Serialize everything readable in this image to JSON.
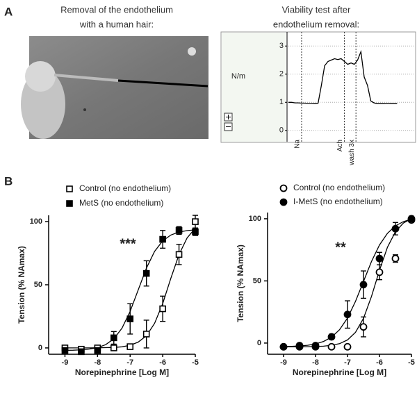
{
  "panel_labels": {
    "a": "A",
    "b": "B"
  },
  "photo": {
    "caption": [
      "Removal of the endothelium",
      "with a human hair:"
    ]
  },
  "chart_data": [
    {
      "type": "trace",
      "title": [
        "Viability test after",
        "endothelium removal:"
      ],
      "ylabel": "N/m",
      "ylim": [
        -0.4,
        3.5
      ],
      "yticks": [
        0,
        1,
        2,
        3
      ],
      "grid": true,
      "color": "#000",
      "values": [
        1.0,
        1.0,
        0.98,
        0.98,
        0.97,
        0.97,
        0.96,
        0.96,
        0.95,
        0.97,
        1.6,
        2.3,
        2.45,
        2.5,
        2.55,
        2.52,
        2.55,
        2.45,
        2.35,
        2.4,
        2.35,
        2.5,
        2.8,
        1.9,
        1.6,
        1.05,
        0.98,
        0.95,
        0.95,
        0.95,
        0.96,
        0.95,
        0.95,
        0.95
      ],
      "events": [
        {
          "text": "Na",
          "at": 4
        },
        {
          "text": "Ach",
          "at": 17
        },
        {
          "text": "wash 3x",
          "at": 20.5
        }
      ]
    },
    {
      "type": "dose-response",
      "xlabel": "Norepinephrine [Log M]",
      "ylabel": "Tension (% NAmax)",
      "annotation": "***",
      "xlim": [
        -9.5,
        -5
      ],
      "xticks": [
        -9,
        -8,
        -7,
        -6,
        -5
      ],
      "ylim": [
        -5,
        105
      ],
      "yticks": [
        0,
        50,
        100
      ],
      "x": [
        -9,
        -8.5,
        -8,
        -7.5,
        -7,
        -6.5,
        -6,
        -5.5,
        -5
      ],
      "fit_x": [
        -9,
        -8.75,
        -8.5,
        -8.25,
        -8,
        -7.75,
        -7.5,
        -7.25,
        -7,
        -6.75,
        -6.5,
        -6.25,
        -6,
        -5.75,
        -5.5,
        -5.25,
        -5
      ],
      "series": [
        {
          "name": "Control (no endothelium)",
          "marker": "square",
          "filled": false,
          "color": "#000",
          "values": [
            0,
            -1,
            0,
            0,
            1,
            11,
            31,
            74,
            100
          ],
          "errors": [
            1,
            1,
            1,
            1,
            1,
            11,
            10,
            8,
            5
          ],
          "fit": [
            0,
            0,
            0,
            0,
            0.1,
            0.2,
            0.4,
            0.9,
            2.1,
            4.6,
            9.7,
            19.4,
            35.1,
            55.1,
            73.9,
            87.2,
            94.8
          ]
        },
        {
          "name": "MetS (no endothelium)",
          "marker": "square",
          "filled": true,
          "color": "#000",
          "values": [
            -2,
            -3,
            -2,
            8,
            23,
            59,
            86,
            93,
            92
          ],
          "errors": [
            1,
            1,
            1,
            5,
            12,
            10,
            7,
            3,
            3
          ],
          "fit": [
            -1.9,
            -1.8,
            -1.5,
            -0.9,
            0.2,
            2.6,
            7.2,
            15.6,
            28.9,
            46,
            63.2,
            76.4,
            84.8,
            89.4,
            91.8,
            92.9,
            93.5
          ]
        }
      ]
    },
    {
      "type": "dose-response",
      "xlabel": "Norepinephrine [Log M]",
      "ylabel": "Tension (% NAmax)",
      "annotation": "**",
      "xlim": [
        -9.5,
        -5
      ],
      "xticks": [
        -9,
        -8,
        -7,
        -6,
        -5
      ],
      "ylim": [
        -9,
        105
      ],
      "yticks": [
        0,
        50,
        100
      ],
      "x": [
        -9,
        -8.5,
        -8,
        -7.5,
        -7,
        -6.5,
        -6,
        -5.5,
        -5
      ],
      "fit_x": [
        -9,
        -8.75,
        -8.5,
        -8.25,
        -8,
        -7.75,
        -7.5,
        -7.25,
        -7,
        -6.75,
        -6.5,
        -6.25,
        -6,
        -5.75,
        -5.5,
        -5.25,
        -5
      ],
      "series": [
        {
          "name": "Control (no endothelium)",
          "marker": "circle",
          "filled": false,
          "color": "#000",
          "values": [
            -3,
            -3,
            -3,
            -3,
            -3,
            13,
            57,
            68,
            99
          ],
          "errors": [
            1,
            1,
            1,
            1,
            2,
            8,
            6,
            3,
            2
          ],
          "fit": [
            -3,
            -3,
            -3,
            -2.9,
            -2.8,
            -2.5,
            -1.8,
            -0.5,
            2.5,
            8.6,
            19.9,
            37.5,
            58.5,
            77.1,
            89.6,
            96.6,
            100
          ]
        },
        {
          "name": "I-MetS (no endothelium)",
          "marker": "circle",
          "filled": true,
          "color": "#000",
          "values": [
            -3,
            -2,
            -2,
            5,
            23,
            47,
            68,
            92,
            100
          ],
          "errors": [
            1,
            1,
            1,
            2,
            11,
            11,
            5,
            5,
            2
          ],
          "fit": [
            -2.8,
            -2.65,
            -2.3,
            -1.8,
            -0.7,
            1.3,
            4.7,
            10.7,
            20.1,
            33.5,
            49.5,
            65.6,
            78.9,
            88.3,
            94.3,
            97.7,
            99.7
          ]
        }
      ]
    }
  ]
}
